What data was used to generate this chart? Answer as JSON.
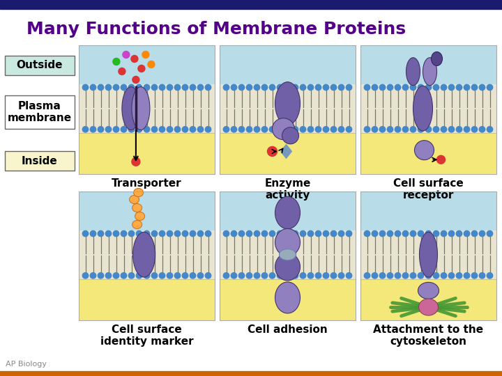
{
  "title": "Many Functions of Membrane Proteins",
  "title_color": "#550088",
  "title_fontsize": 18,
  "bg_color": "#ffffff",
  "header_bar_color": "#1a1a6e",
  "outside_label": "Outside",
  "plasma_label": "Plasma\nmembrane",
  "inside_label": "Inside",
  "label_bg_outside": "#c8e8e0",
  "label_bg_plasma": "#ffffff",
  "label_bg_inside": "#f8f4cc",
  "caption_fontsize": 11,
  "captions": [
    "Transporter",
    "Enzyme\nactivity",
    "Cell surface\nreceptor",
    "Cell surface\nidentity marker",
    "Cell adhesion",
    "Attachment to the\ncytoskeleton"
  ],
  "outside_color": "#b8dce8",
  "inside_color": "#f5e87a",
  "membrane_color": "#e8e4d0",
  "lipid_head_color": "#4488cc",
  "protein_color": "#7060a8",
  "protein_color2": "#9080c0",
  "panel_border": "#aaaaaa"
}
